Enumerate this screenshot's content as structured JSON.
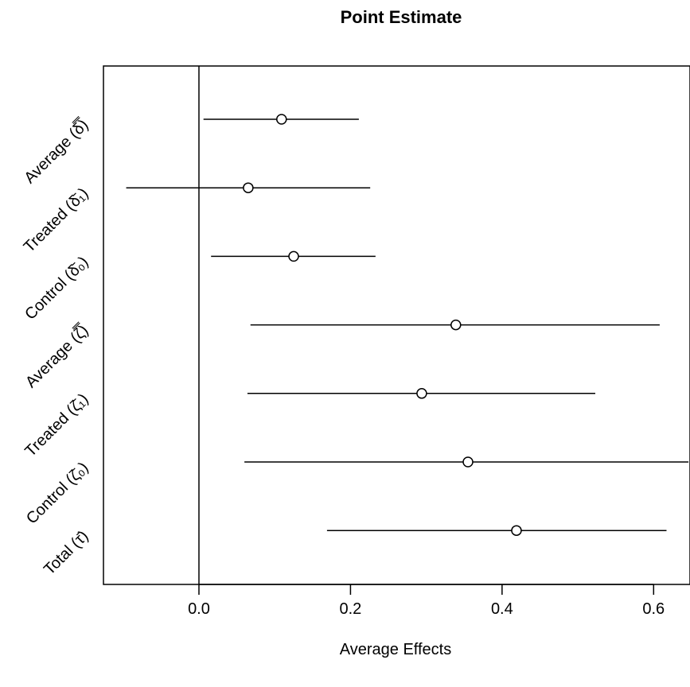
{
  "chart_data": {
    "type": "scatter",
    "title": "Point Estimate",
    "xlabel": "Average Effects",
    "ylabel": "",
    "xlim": [
      -0.126,
      0.648
    ],
    "xticks": [
      0.0,
      0.2,
      0.4,
      0.6
    ],
    "xtick_labels": [
      "0.0",
      "0.2",
      "0.4",
      "0.6"
    ],
    "reference_line_x": 0,
    "grid": false,
    "categories": [
      "Average (δ̿)",
      "Treated (δ̄₁)",
      "Control (δ̄₀)",
      "Average (ζ̿)",
      "Treated (ζ̄₁)",
      "Control (ζ̄₀)",
      "Total (τ̄)"
    ],
    "points": [
      {
        "estimate": 0.109,
        "lower": 0.006,
        "upper": 0.211
      },
      {
        "estimate": 0.065,
        "lower": -0.096,
        "upper": 0.226
      },
      {
        "estimate": 0.125,
        "lower": 0.016,
        "upper": 0.233
      },
      {
        "estimate": 0.339,
        "lower": 0.068,
        "upper": 0.608
      },
      {
        "estimate": 0.294,
        "lower": 0.064,
        "upper": 0.523
      },
      {
        "estimate": 0.355,
        "lower": 0.06,
        "upper": 0.646
      },
      {
        "estimate": 0.419,
        "lower": 0.169,
        "upper": 0.617
      }
    ]
  }
}
